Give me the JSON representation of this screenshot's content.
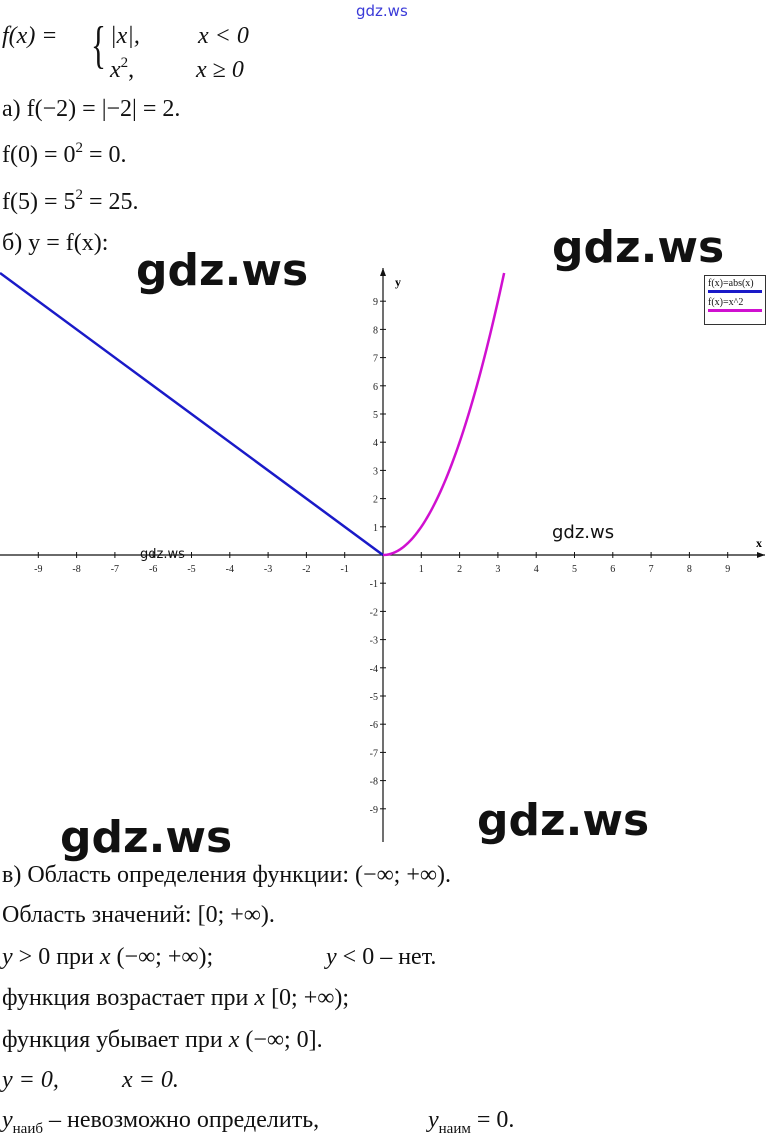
{
  "watermarks": [
    "gdz.ws",
    "gdz.ws",
    "gdz.ws",
    "gdz.ws",
    "gdz.ws",
    "gdz.ws",
    "gdz.ws"
  ],
  "definition": {
    "lhs": "f(x) =",
    "case1_expr": "|x|,",
    "case1_cond": "x < 0",
    "case2_expr": "x",
    "case2_exp": "2",
    "case2_comma": ",",
    "case2_cond": "x ≥ 0"
  },
  "part_a": {
    "line1": "а) f(−2) = |−2| = 2.",
    "line2_pre": "f(0) = 0",
    "line2_exp": "2",
    "line2_post": " = 0.",
    "line3_pre": "f(5) = 5",
    "line3_exp": "2",
    "line3_post": " = 25."
  },
  "part_b": {
    "label": "б) y = f(x):"
  },
  "chart_data": {
    "type": "line",
    "xlabel": "x",
    "ylabel": "y",
    "xlim": [
      -10,
      10
    ],
    "ylim": [
      -10,
      10
    ],
    "x_ticks": [
      -9,
      -8,
      -7,
      -6,
      -5,
      -4,
      -3,
      -2,
      -1,
      1,
      2,
      3,
      4,
      5,
      6,
      7,
      8,
      9
    ],
    "y_ticks": [
      -9,
      -8,
      -7,
      -6,
      -5,
      -4,
      -3,
      -2,
      -1,
      1,
      2,
      3,
      4,
      5,
      6,
      7,
      8,
      9
    ],
    "grid": false,
    "legend_position": "top-right",
    "series": [
      {
        "name": "f(x)=abs(x)",
        "color": "#1a1ac8",
        "x": [
          -10,
          0
        ],
        "y": [
          10,
          0
        ]
      },
      {
        "name": "f(x)=x^2",
        "color": "#d010d0",
        "x": [
          0,
          0.5,
          1,
          1.5,
          2,
          2.5,
          3,
          3.16
        ],
        "y": [
          0,
          0.25,
          1,
          2.25,
          4,
          6.25,
          9,
          10
        ]
      }
    ]
  },
  "part_v": {
    "line1": "в) Область определения функции: (−∞;  +∞).",
    "line2": "Область значений: [0;  +∞).",
    "line3a_y": "y",
    "line3a": " > 0 при ",
    "line3a_x": "x",
    "line3a_rest": " (−∞;  +∞);",
    "line3b_y": "y",
    "line3b": " < 0 – нет.",
    "line4": "функция возрастает при ",
    "line4_x": "x",
    "line4_rest": " [0;  +∞);",
    "line5": "функция убывает при ",
    "line5_x": "x",
    "line5_rest": " (−∞; 0].",
    "line6a": "y = 0,",
    "line6b": "x = 0.",
    "line7_y": "y",
    "line7_sub": "наиб",
    "line7_mid": " – невозможно определить,",
    "line7_y2": "y",
    "line7_sub2": "наим",
    "line7_end": " = 0."
  }
}
